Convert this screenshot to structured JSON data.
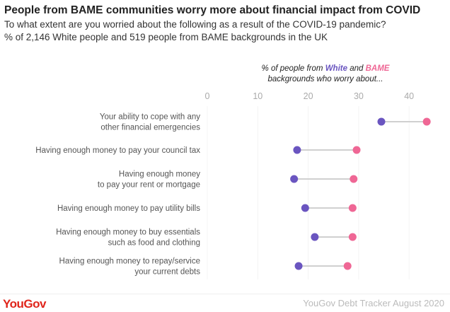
{
  "header": {
    "title": "People from BAME communities worry more about financial impact from COVID",
    "subtitle1": "To what extent are you worried about the following as a result of the COVID-19 pandemic?",
    "subtitle2": "% of 2,146 White people and 519 people from BAME backgrounds in the UK"
  },
  "footer": {
    "logo": "YouGov",
    "source": "YouGov Debt Tracker August 2020"
  },
  "colors": {
    "white": "#6a55c0",
    "bame": "#ef6795",
    "connector": "#d0d0d0"
  },
  "chart_data": {
    "type": "dumbbell",
    "title": "People from BAME communities worry more about financial impact from COVID",
    "annotation": {
      "prefix": "% of people from ",
      "white": "White",
      "mid": " and ",
      "bame": "BAME",
      "line2": "backgrounds who worry about..."
    },
    "xlim": [
      0,
      45
    ],
    "xticks": [
      0,
      10,
      20,
      30,
      40
    ],
    "categories": [
      [
        "Your ability to cope with any",
        "other financial emergencies"
      ],
      [
        "Having enough money to pay your council tax"
      ],
      [
        "Having enough money",
        "to pay your rent or mortgage"
      ],
      [
        "Having enough money to pay utility bills"
      ],
      [
        "Having enough money to buy essentials",
        "such as food and clothing"
      ],
      [
        "Having enough money to repay/service",
        "your current debts"
      ]
    ],
    "series": [
      {
        "name": "White",
        "values": [
          34.5,
          17.8,
          17.2,
          19.4,
          21.3,
          18.1
        ]
      },
      {
        "name": "BAME",
        "values": [
          43.5,
          29.6,
          29.0,
          28.8,
          28.8,
          27.8
        ]
      }
    ]
  }
}
